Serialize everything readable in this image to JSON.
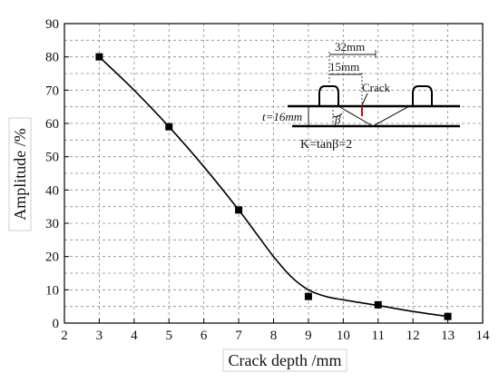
{
  "chart_data": {
    "type": "line",
    "title": "",
    "xlabel": "Crack depth /mm",
    "ylabel": "Amplitude /%",
    "xlim": [
      2,
      14
    ],
    "ylim": [
      0,
      90
    ],
    "x_ticks": [
      "2",
      "3",
      "4",
      "5",
      "6",
      "7",
      "8",
      "9",
      "10",
      "11",
      "12",
      "13",
      "14"
    ],
    "y_ticks": [
      "0",
      "10",
      "20",
      "30",
      "40",
      "50",
      "60",
      "70",
      "80",
      "90"
    ],
    "grid": true,
    "series": [
      {
        "marker": "square",
        "x": [
          3,
          5,
          7,
          9,
          11,
          13
        ],
        "y": [
          80,
          59,
          34,
          8,
          5.5,
          2
        ]
      }
    ],
    "fit_curve": {
      "x": [
        3,
        4,
        5,
        6,
        7,
        7.5,
        8,
        8.5,
        9,
        9.5,
        10,
        11,
        12,
        13
      ],
      "y": [
        80,
        70,
        59,
        47,
        34,
        27,
        20,
        14,
        10,
        8,
        7,
        5.3,
        3.5,
        2
      ]
    },
    "annotations": {
      "dim_32": "32mm",
      "dim_15": "15mm",
      "crack": "Crack",
      "thickness": "t=16mm",
      "beta": "β",
      "k": "K=tanβ=2"
    }
  }
}
